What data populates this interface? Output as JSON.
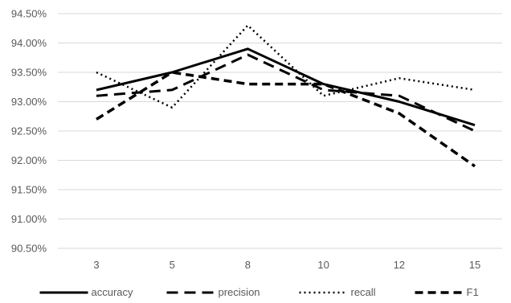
{
  "chart_data": {
    "type": "line",
    "categories": [
      "3",
      "5",
      "8",
      "10",
      "12",
      "15"
    ],
    "ylim": [
      90.5,
      94.5
    ],
    "yticks": [
      90.5,
      91.0,
      91.5,
      92.0,
      92.5,
      93.0,
      93.5,
      94.0,
      94.5
    ],
    "ytick_labels": [
      "90.50%",
      "91.00%",
      "91.50%",
      "92.00%",
      "92.50%",
      "93.00%",
      "93.50%",
      "94.00%",
      "94.50%"
    ],
    "grid": "horizontal",
    "legend": "bottom",
    "series": [
      {
        "name": "accuracy",
        "style": "solid",
        "values": [
          93.2,
          93.5,
          93.9,
          93.3,
          93.0,
          92.6
        ]
      },
      {
        "name": "precision",
        "style": "long-dash",
        "values": [
          93.1,
          93.2,
          93.8,
          93.2,
          93.1,
          92.5
        ]
      },
      {
        "name": "recall",
        "style": "dotted",
        "values": [
          93.5,
          92.9,
          94.3,
          93.1,
          93.4,
          93.2
        ]
      },
      {
        "name": "F1",
        "style": "short-dash",
        "values": [
          92.7,
          93.5,
          93.3,
          93.3,
          92.8,
          91.9
        ]
      }
    ]
  }
}
